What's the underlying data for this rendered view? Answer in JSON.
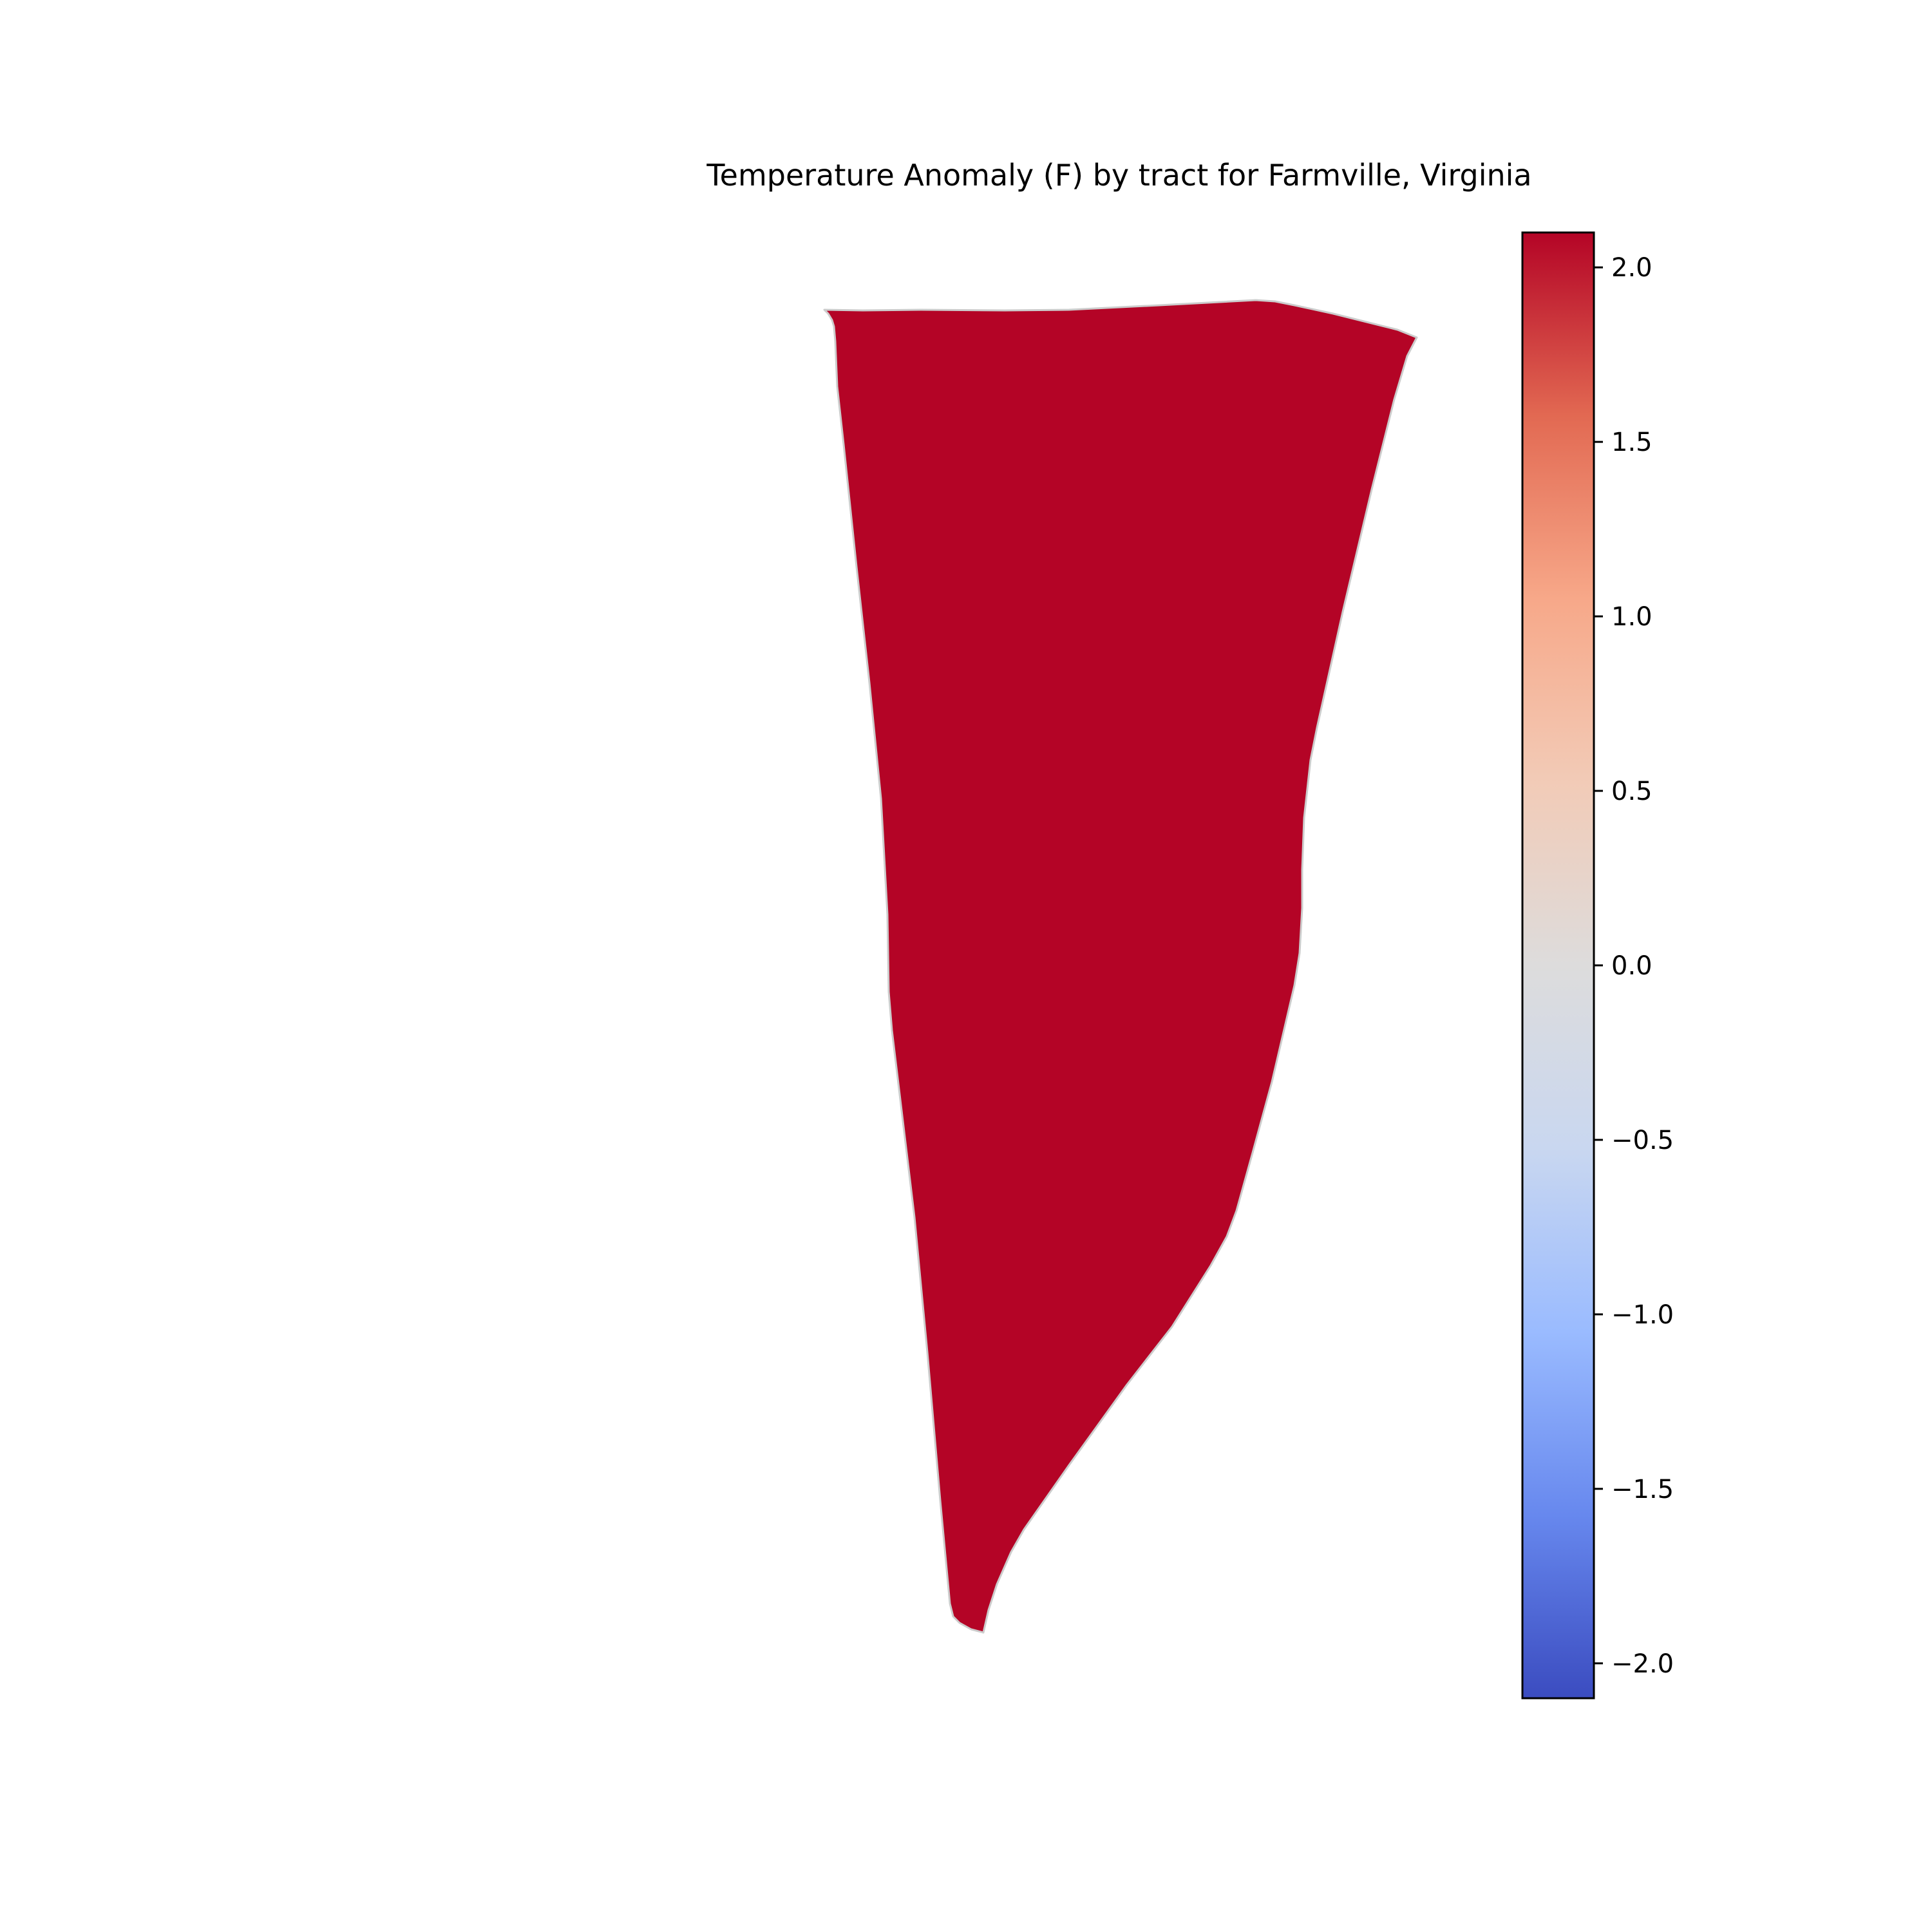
{
  "title": "Temperature Anomaly (F) by tract for Farmville, Virginia",
  "tract": {
    "value": 2.1,
    "fill_color": "#b40426",
    "edge_color": "#cccccc"
  },
  "colorbar": {
    "colormap": "coolwarm",
    "vmin": -2.1,
    "vmax": 2.1,
    "ticks": [
      {
        "value": 2.0,
        "label": "2.0"
      },
      {
        "value": 1.5,
        "label": "1.5"
      },
      {
        "value": 1.0,
        "label": "1.0"
      },
      {
        "value": 0.5,
        "label": "0.5"
      },
      {
        "value": 0.0,
        "label": "0.0"
      },
      {
        "value": -0.5,
        "label": "−0.5"
      },
      {
        "value": -1.0,
        "label": "−1.0"
      },
      {
        "value": -1.5,
        "label": "−1.5"
      },
      {
        "value": -2.0,
        "label": "−2.0"
      }
    ],
    "stops": [
      "#3b4cc0",
      "#6788ee",
      "#9abbff",
      "#c9d7f0",
      "#dddcdc",
      "#f2cbb7",
      "#f7a889",
      "#e26952",
      "#b40426"
    ]
  }
}
